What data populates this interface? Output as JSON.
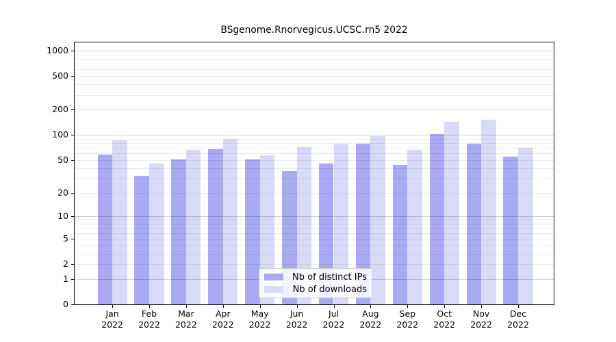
{
  "title": "BSgenome.Rnorvegicus.UCSC.rn5 2022",
  "legend": {
    "items": [
      {
        "label": "Nb of distinct IPs",
        "color": "#a9a9f4"
      },
      {
        "label": "Nb of downloads",
        "color": "#d9d9f8"
      }
    ]
  },
  "chart_data": {
    "type": "bar",
    "title": "BSgenome.Rnorvegicus.UCSC.rn5 2022",
    "categories": [
      "Jan",
      "Feb",
      "Mar",
      "Apr",
      "May",
      "Jun",
      "Jul",
      "Aug",
      "Sep",
      "Oct",
      "Nov",
      "Dec"
    ],
    "category_sublabel": "2022",
    "series": [
      {
        "name": "Nb of distinct IPs",
        "color": "#a9a9f4",
        "values": [
          58,
          32,
          51,
          68,
          51,
          37,
          45,
          78,
          44,
          102,
          78,
          55
        ]
      },
      {
        "name": "Nb of downloads",
        "color": "#d9d9f8",
        "values": [
          86,
          45,
          66,
          90,
          57,
          72,
          78,
          96,
          66,
          143,
          152,
          70
        ]
      }
    ],
    "xlabel": "",
    "ylabel": "",
    "y_ticks": [
      0,
      1,
      2,
      5,
      10,
      20,
      50,
      100,
      200,
      500,
      1000
    ],
    "y_scale": "log10(1+value)",
    "ylim": [
      0,
      1270
    ],
    "grid": true,
    "grid_minor": true,
    "legend_position": "lower center",
    "bar_edge": "none"
  }
}
